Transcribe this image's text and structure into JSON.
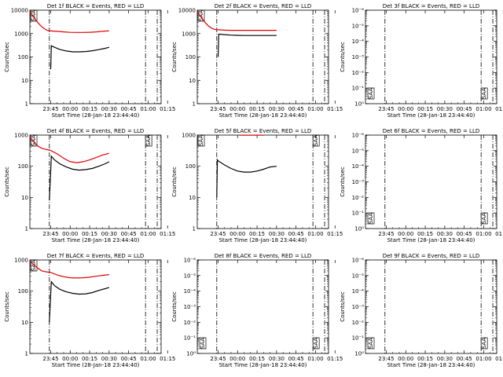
{
  "colors": {
    "events": "#000000",
    "lld": "#e00000"
  },
  "chart_data": [
    {
      "type": "line",
      "title": "Det 1f BLACK = Events, RED = LLD",
      "xlabel": "Start Time (28-Jan-18 23:44:40)",
      "ylabel": "Counts/sec",
      "y_scale": "log",
      "ylim": [
        1,
        10000
      ],
      "xlim": [
        -16,
        85
      ],
      "xtick_labels": [
        "23:45",
        "00:00",
        "00:15",
        "00:30",
        "00:45",
        "01:00",
        "01:15"
      ],
      "ytick_labels": [
        "1",
        "10",
        "100",
        "1000",
        "10000"
      ],
      "vlines": [
        -1,
        73,
        82
      ],
      "saa_labels": [
        "SAA"
      ],
      "series": [
        {
          "color": "red",
          "x": [
            -16,
            -13,
            -10,
            -7,
            -4,
            -1,
            0,
            5,
            10,
            15,
            20,
            25,
            30,
            35,
            40,
            45
          ],
          "y": [
            9000,
            5000,
            3000,
            2000,
            1500,
            1300,
            1300,
            1250,
            1180,
            1130,
            1120,
            1120,
            1140,
            1180,
            1250,
            1320
          ]
        },
        {
          "color": "black",
          "x": [
            0,
            0.5,
            3,
            7,
            12,
            17,
            22,
            27,
            32,
            37,
            42,
            45
          ],
          "y": [
            30,
            300,
            260,
            210,
            180,
            165,
            165,
            170,
            185,
            205,
            235,
            260
          ]
        }
      ]
    },
    {
      "type": "line",
      "title": "Det 2f BLACK = Events, RED = LLD",
      "xlabel": "Start Time (28-Jan-18 23:44:40)",
      "ylabel": "Counts/sec",
      "y_scale": "log",
      "ylim": [
        1,
        10000
      ],
      "xlim": [
        -16,
        85
      ],
      "xtick_labels": [
        "23:45",
        "00:00",
        "00:15",
        "00:30",
        "00:45",
        "01:00",
        "01:15"
      ],
      "ytick_labels": [
        "1",
        "10",
        "100",
        "1000",
        "10000"
      ],
      "vlines": [
        -1,
        73,
        82
      ],
      "saa_labels": [
        "SAA"
      ],
      "series": [
        {
          "color": "red",
          "x": [
            -16,
            -13,
            -10,
            -7,
            -4,
            -1,
            0,
            5,
            10,
            15,
            20,
            25,
            30,
            35,
            40,
            45
          ],
          "y": [
            9000,
            5000,
            3000,
            2000,
            1600,
            1450,
            1450,
            1400,
            1380,
            1380,
            1380,
            1380,
            1380,
            1380,
            1380,
            1380
          ]
        },
        {
          "color": "black",
          "x": [
            0,
            0.5,
            5,
            10,
            15,
            20,
            25,
            30,
            35,
            40,
            45
          ],
          "y": [
            100,
            950,
            900,
            860,
            840,
            830,
            830,
            830,
            830,
            830,
            830
          ]
        }
      ]
    },
    {
      "type": "line",
      "title": "Det 3f BLACK = Events, RED = LLD",
      "xlabel": "Start Time (28-Jan-18 23:44:40)",
      "ylabel": "Counts/sec",
      "y_scale": "log",
      "ylim": [
        1,
        10000
      ],
      "xlim": [
        -16,
        85
      ],
      "xtick_labels": [
        "23:45",
        "00:00",
        "00:15",
        "00:30",
        "00:45",
        "01:00",
        "01:15"
      ],
      "ytick_labels": [
        "10⁰",
        "10⁻¹",
        "10⁻²",
        "10⁻³",
        "10⁻⁴",
        "10⁻⁵",
        "10⁻⁶"
      ],
      "vlines": [
        -1,
        73,
        82
      ],
      "saa_labels": [
        "SAA",
        "SAA"
      ],
      "series": []
    },
    {
      "type": "line",
      "title": "Det 4f BLACK = Events, RED = LLD",
      "xlabel": "Start Time (28-Jan-18 23:44:40)",
      "ylabel": "Counts/sec",
      "y_scale": "log",
      "ylim": [
        1,
        1000
      ],
      "xlim": [
        -16,
        85
      ],
      "xtick_labels": [
        "23:45",
        "00:00",
        "00:15",
        "00:30",
        "00:45",
        "01:00",
        "01:15"
      ],
      "ytick_labels": [
        "1",
        "10",
        "100",
        "1000"
      ],
      "vlines": [
        -1,
        73,
        82
      ],
      "saa_labels": [
        "SAA",
        "SAA"
      ],
      "series": [
        {
          "color": "red",
          "x": [
            -16,
            -13,
            -10,
            -7,
            -4,
            -1,
            0,
            5,
            10,
            15,
            20,
            25,
            30,
            35,
            40,
            45
          ],
          "y": [
            900,
            600,
            450,
            380,
            350,
            330,
            320,
            250,
            180,
            140,
            130,
            140,
            160,
            190,
            230,
            260
          ]
        },
        {
          "color": "black",
          "x": [
            -1,
            0,
            0.5,
            3,
            7,
            12,
            17,
            22,
            27,
            32,
            37,
            42,
            45
          ],
          "y": [
            8,
            70,
            210,
            160,
            120,
            95,
            80,
            75,
            78,
            85,
            100,
            120,
            140
          ]
        }
      ]
    },
    {
      "type": "line",
      "title": "Det 5f BLACK = Events, RED = LLD",
      "xlabel": "Start Time (28-Jan-18 23:44:40)",
      "ylabel": "Counts/sec",
      "y_scale": "log",
      "ylim": [
        1,
        1000
      ],
      "xlim": [
        -16,
        85
      ],
      "xtick_labels": [
        "23:45",
        "00:00",
        "00:15",
        "00:30",
        "00:45",
        "01:00",
        "01:15"
      ],
      "ytick_labels": [
        "1",
        "10",
        "100",
        "1000"
      ],
      "vlines": [
        -1,
        73,
        82
      ],
      "saa_labels": [
        "SAA",
        "SAA"
      ],
      "series": [
        {
          "color": "red",
          "x": [
            17,
            20,
            25,
            30,
            35
          ],
          "y": [
            990,
            990,
            990,
            990,
            990
          ]
        },
        {
          "color": "black",
          "x": [
            -1,
            -0.5,
            0,
            5,
            10,
            15,
            20,
            25,
            30,
            35,
            40,
            45
          ],
          "y": [
            10,
            160,
            150,
            110,
            85,
            70,
            65,
            65,
            70,
            80,
            95,
            100
          ]
        }
      ]
    },
    {
      "type": "line",
      "title": "Det 6f BLACK = Events, RED = LLD",
      "xlabel": "Start Time (28-Jan-18 23:44:40)",
      "ylabel": "Counts/sec",
      "y_scale": "log",
      "ylim": [
        1,
        10000
      ],
      "xlim": [
        -16,
        85
      ],
      "xtick_labels": [
        "23:45",
        "00:00",
        "00:15",
        "00:30",
        "00:45",
        "01:00",
        "01:15"
      ],
      "ytick_labels": [
        "10⁰",
        "10⁻¹",
        "10⁻²",
        "10⁻³",
        "10⁻⁴",
        "10⁻⁵",
        "10⁻⁶"
      ],
      "vlines": [
        -1,
        73,
        82
      ],
      "saa_labels": [
        "SAA",
        "SAA"
      ],
      "series": []
    },
    {
      "type": "line",
      "title": "Det 7f BLACK = Events, RED = LLD",
      "xlabel": "Start Time (28-Jan-18 23:44:40)",
      "ylabel": "Counts/sec",
      "y_scale": "log",
      "ylim": [
        1,
        1000
      ],
      "xlim": [
        -16,
        85
      ],
      "xtick_labels": [
        "23:45",
        "00:00",
        "00:15",
        "00:30",
        "00:45",
        "01:00",
        "01:15"
      ],
      "ytick_labels": [
        "1",
        "10",
        "100",
        "1000"
      ],
      "vlines": [
        -1,
        73,
        82
      ],
      "saa_labels": [
        "SAA"
      ],
      "series": [
        {
          "color": "red",
          "x": [
            -16,
            -13,
            -10,
            -7,
            -4,
            -1,
            0,
            5,
            10,
            15,
            20,
            25,
            30,
            35,
            40,
            45
          ],
          "y": [
            900,
            700,
            550,
            450,
            420,
            400,
            400,
            330,
            290,
            270,
            265,
            270,
            280,
            300,
            320,
            340
          ]
        },
        {
          "color": "black",
          "x": [
            -1,
            0,
            0.5,
            3,
            7,
            12,
            17,
            22,
            27,
            32,
            37,
            42,
            45
          ],
          "y": [
            10,
            80,
            200,
            150,
            115,
            95,
            85,
            80,
            82,
            90,
            105,
            120,
            130
          ]
        }
      ]
    },
    {
      "type": "line",
      "title": "Det 8f BLACK = Events, RED = LLD",
      "xlabel": "Start Time (28-Jan-18 23:44:40)",
      "ylabel": "Counts/sec",
      "y_scale": "log",
      "ylim": [
        1,
        10000
      ],
      "xlim": [
        -16,
        85
      ],
      "xtick_labels": [
        "23:45",
        "00:00",
        "00:15",
        "00:30",
        "00:45",
        "01:00",
        "01:15"
      ],
      "ytick_labels": [
        "10⁰",
        "10⁻¹",
        "10⁻²",
        "10⁻³",
        "10⁻⁴",
        "10⁻⁵",
        "10⁻⁶"
      ],
      "vlines": [
        -1,
        73,
        82
      ],
      "saa_labels": [
        "SAA",
        "SAA"
      ],
      "series": []
    },
    {
      "type": "line",
      "title": "Det 9f BLACK = Events, RED = LLD",
      "xlabel": "Start Time (28-Jan-18 23:44:40)",
      "ylabel": "Counts/sec",
      "y_scale": "log",
      "ylim": [
        1,
        10000
      ],
      "xlim": [
        -16,
        85
      ],
      "xtick_labels": [
        "23:45",
        "00:00",
        "00:15",
        "00:30",
        "00:45",
        "01:00",
        "01:15"
      ],
      "ytick_labels": [
        "10⁰",
        "10⁻¹",
        "10⁻²",
        "10⁻³",
        "10⁻⁴",
        "10⁻⁵",
        "10⁻⁶"
      ],
      "vlines": [
        -1,
        73,
        82
      ],
      "saa_labels": [
        "SAA",
        "SAA"
      ],
      "series": []
    }
  ]
}
